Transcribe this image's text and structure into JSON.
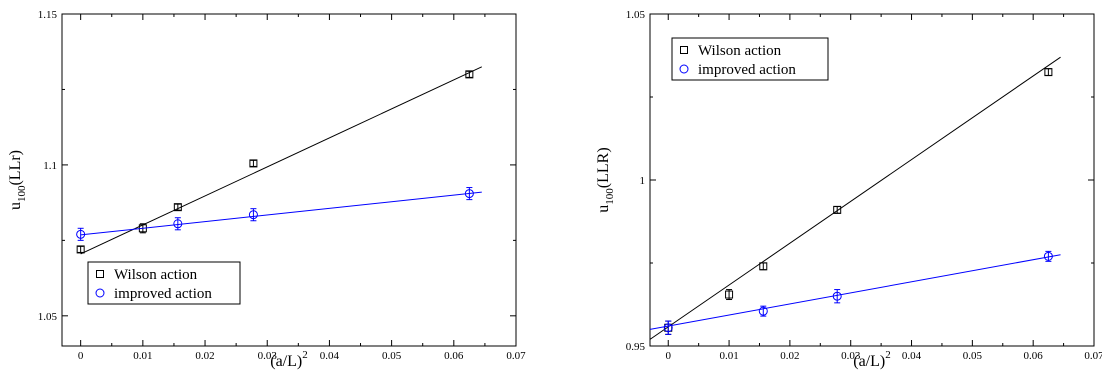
{
  "chart_data": [
    {
      "type": "scatter",
      "xlabel": "(a/L)",
      "xlabel_sup": "2",
      "ylabel": "u",
      "ylabel_sub": "100",
      "ylabel_tail": "(LLr)",
      "xlim": [
        -0.003,
        0.07
      ],
      "ylim": [
        1.04,
        1.15
      ],
      "xticks": [
        0,
        0.01,
        0.02,
        0.03,
        0.04,
        0.05,
        0.06,
        0.07
      ],
      "xtick_labels": [
        "0",
        "0.01",
        "0.02",
        "0.03",
        "0.04",
        "0.05",
        "0.06",
        "0.07"
      ],
      "yticks": [
        1.05,
        1.1,
        1.15
      ],
      "ytick_labels": [
        "1.05",
        "1.1",
        "1.15"
      ],
      "legend_position": "bottom-left",
      "series": [
        {
          "name": "Wilson action",
          "marker": "square",
          "color": "#000000",
          "x": [
            0,
            0.01,
            0.015625,
            0.027778,
            0.0625
          ],
          "y": [
            1.072,
            1.079,
            1.086,
            1.1005,
            1.13
          ],
          "err": [
            0.001,
            0.0015,
            0.001,
            0.001,
            0.001
          ],
          "fit": {
            "x": [
              0,
              0.0645
            ],
            "y": [
              1.0705,
              1.1325
            ]
          }
        },
        {
          "name": "improved action",
          "marker": "circle",
          "color": "#0000ff",
          "x": [
            0,
            0.015625,
            0.027778,
            0.0625
          ],
          "y": [
            1.077,
            1.0805,
            1.0835,
            1.0905
          ],
          "err": [
            0.002,
            0.002,
            0.002,
            0.002
          ],
          "fit": {
            "x": [
              0,
              0.0645
            ],
            "y": [
              1.0768,
              1.091
            ]
          }
        }
      ]
    },
    {
      "type": "scatter",
      "xlabel": "(a/L)",
      "xlabel_sup": "2",
      "ylabel": "u",
      "ylabel_sub": "100",
      "ylabel_tail": "(LLR)",
      "xlim": [
        -0.003,
        0.07
      ],
      "ylim": [
        0.95,
        1.05
      ],
      "xticks": [
        0,
        0.01,
        0.02,
        0.03,
        0.04,
        0.05,
        0.06,
        0.07
      ],
      "xtick_labels": [
        "0",
        "0.01",
        "0.02",
        "0.03",
        "0.04",
        "0.05",
        "0.06",
        "0.07"
      ],
      "yticks": [
        0.95,
        1,
        1.05
      ],
      "ytick_labels": [
        "0.95",
        "1",
        "1.05"
      ],
      "legend_position": "top-left",
      "series": [
        {
          "name": "Wilson action",
          "marker": "square",
          "color": "#000000",
          "x": [
            0,
            0.01,
            0.015625,
            0.027778,
            0.0625
          ],
          "y": [
            0.9555,
            0.9655,
            0.974,
            0.991,
            1.0325
          ],
          "err": [
            0.002,
            0.0015,
            0.001,
            0.001,
            0.001
          ],
          "fit": {
            "x": [
              -0.003,
              0.0645
            ],
            "y": [
              0.952,
              1.037
            ]
          }
        },
        {
          "name": "improved action",
          "marker": "circle",
          "color": "#0000ff",
          "x": [
            0,
            0.015625,
            0.027778,
            0.0625
          ],
          "y": [
            0.9555,
            0.9605,
            0.965,
            0.977
          ],
          "err": [
            0.002,
            0.0015,
            0.002,
            0.0015
          ],
          "fit": {
            "x": [
              -0.003,
              0.0645
            ],
            "y": [
              0.955,
              0.9775
            ]
          }
        }
      ]
    }
  ]
}
